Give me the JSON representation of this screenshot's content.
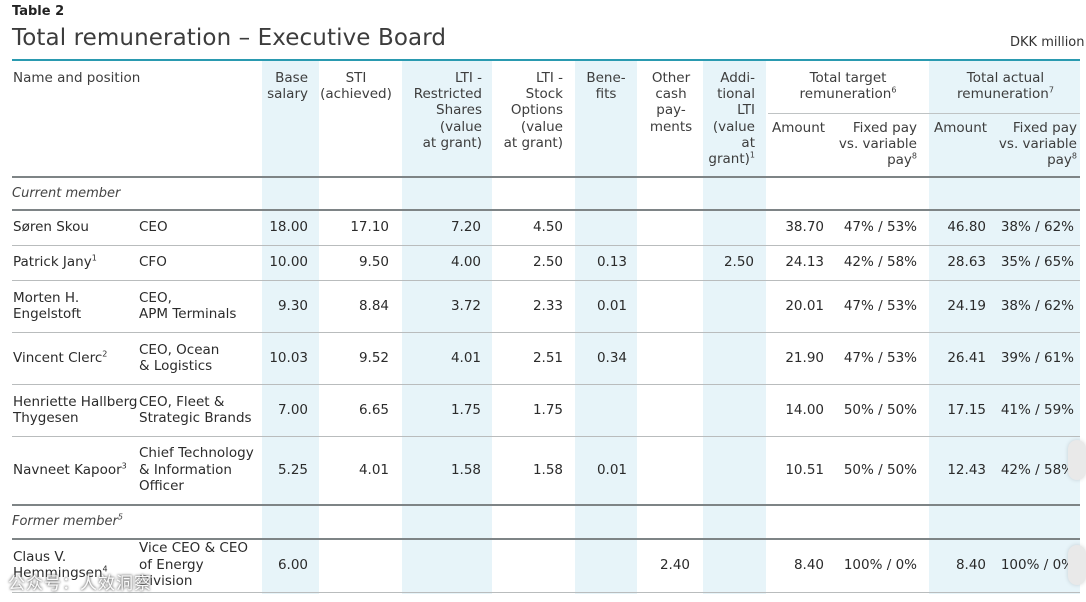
{
  "table_label": "Table 2",
  "title": "Total remuneration – Executive Board",
  "currency_note": "DKK million",
  "columns": {
    "name_position": "Name and position",
    "base_salary": "Base\nsalary",
    "sti": "STI\n(achieved)",
    "lti_shares": "LTI -\nRestricted\nShares\n(value\nat grant)",
    "lti_options": "LTI -\nStock\nOptions\n(value\nat grant)",
    "benefits": "Bene-\nfits",
    "other_cash": "Other\ncash\npay-\nments",
    "additional_lti": "Addi-\ntional\nLTI\n(value\nat\ngrant)",
    "additional_lti_note": "1",
    "total_target": "Total target\nremuneration",
    "total_target_note": "6",
    "total_actual": "Total actual\nremuneration",
    "total_actual_note": "7",
    "amount_target": "Amount",
    "fixed_variable_target": "Fixed pay\nvs. variable\npay",
    "fixed_variable_target_note": "8",
    "amount_actual": "Amount",
    "fixed_variable_actual": "Fixed pay\nvs. variable\npay",
    "fixed_variable_actual_note": "8"
  },
  "sections": {
    "current": "Current member",
    "former": "Former member",
    "former_note": "5"
  },
  "rows": [
    {
      "name": "Søren Skou",
      "note": "",
      "position": "CEO",
      "base": "18.00",
      "sti": "17.10",
      "lti_shares": "7.20",
      "lti_options": "4.50",
      "benefits": "",
      "other_cash": "",
      "add_lti": "",
      "target_amount": "38.70",
      "target_split": "47% / 53%",
      "actual_amount": "46.80",
      "actual_split": "38% / 62%"
    },
    {
      "name": "Patrick Jany",
      "note": "1",
      "position": "CFO",
      "base": "10.00",
      "sti": "9.50",
      "lti_shares": "4.00",
      "lti_options": "2.50",
      "benefits": "0.13",
      "other_cash": "",
      "add_lti": "2.50",
      "target_amount": "24.13",
      "target_split": "42% / 58%",
      "actual_amount": "28.63",
      "actual_split": "35% / 65%"
    },
    {
      "name": "Morten H.\nEngelstoft",
      "note": "",
      "position": "CEO,\nAPM Terminals",
      "base": "9.30",
      "sti": "8.84",
      "lti_shares": "3.72",
      "lti_options": "2.33",
      "benefits": "0.01",
      "other_cash": "",
      "add_lti": "",
      "target_amount": "20.01",
      "target_split": "47% / 53%",
      "actual_amount": "24.19",
      "actual_split": "38% / 62%"
    },
    {
      "name": "Vincent Clerc",
      "note": "2",
      "position": "CEO, Ocean\n& Logistics",
      "base": "10.03",
      "sti": "9.52",
      "lti_shares": "4.01",
      "lti_options": "2.51",
      "benefits": "0.34",
      "other_cash": "",
      "add_lti": "",
      "target_amount": "21.90",
      "target_split": "47% / 53%",
      "actual_amount": "26.41",
      "actual_split": "39% / 61%"
    },
    {
      "name": "Henriette Hallberg\nThygesen",
      "note": "",
      "position": "CEO, Fleet &\nStrategic Brands",
      "base": "7.00",
      "sti": "6.65",
      "lti_shares": "1.75",
      "lti_options": "1.75",
      "benefits": "",
      "other_cash": "",
      "add_lti": "",
      "target_amount": "14.00",
      "target_split": "50% / 50%",
      "actual_amount": "17.15",
      "actual_split": "41% / 59%"
    },
    {
      "name": "Navneet Kapoor",
      "note": "3",
      "position": "Chief Technology\n& Information\nOfficer",
      "base": "5.25",
      "sti": "4.01",
      "lti_shares": "1.58",
      "lti_options": "1.58",
      "benefits": "0.01",
      "other_cash": "",
      "add_lti": "",
      "target_amount": "10.51",
      "target_split": "50% / 50%",
      "actual_amount": "12.43",
      "actual_split": "42% / 58%"
    },
    {
      "name": "Claus V.\nHemmingsen",
      "note": "4",
      "position": "Vice CEO & CEO\nof Energy Division",
      "base": "6.00",
      "sti": "",
      "lti_shares": "",
      "lti_options": "",
      "benefits": "",
      "other_cash": "2.40",
      "add_lti": "",
      "target_amount": "8.40",
      "target_split": "100% / 0%",
      "actual_amount": "8.40",
      "actual_split": "100% / 0%"
    }
  ],
  "watermark": "公众号：人效洞察"
}
